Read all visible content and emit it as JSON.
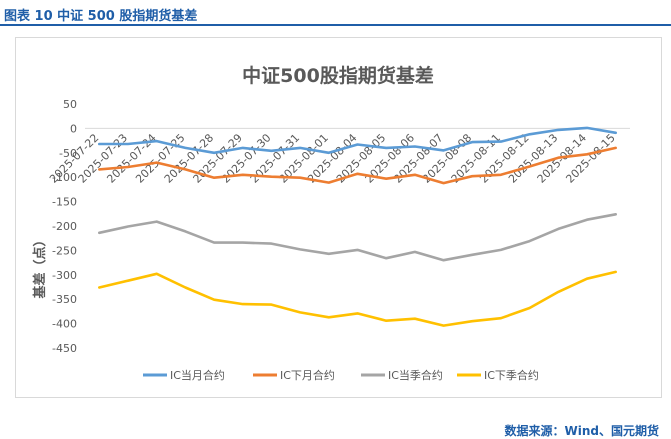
{
  "figure": {
    "caption": "图表 10  中证 500 股指期货基差",
    "source": "数据来源：Wind、国元期货"
  },
  "chart_data": {
    "type": "line",
    "title": "中证500股指期货基差",
    "xlabel": "",
    "ylabel": "基差（点）",
    "ylim": [
      -450,
      50
    ],
    "yticks": [
      50,
      0,
      -50,
      -100,
      -150,
      -200,
      -250,
      -300,
      -350,
      -400,
      -450
    ],
    "grid": false,
    "legend_position": "bottom",
    "categories": [
      "2025-07-22",
      "2025-07-23",
      "2025-07-24",
      "2025-07-25",
      "2025-07-28",
      "2025-07-29",
      "2025-07-30",
      "2025-07-31",
      "2025-08-01",
      "2025-08-04",
      "2025-08-05",
      "2025-08-06",
      "2025-08-07",
      "2025-08-08",
      "2025-08-11",
      "2025-08-12",
      "2025-08-13",
      "2025-08-14",
      "2025-08-15"
    ],
    "series": [
      {
        "name": "IC当月合约",
        "color": "#5b9bd5",
        "values": [
          -32,
          -32,
          -26,
          -40,
          -50,
          -40,
          -46,
          -40,
          -50,
          -33,
          -40,
          -37,
          -45,
          -28,
          -27,
          -12,
          -3,
          1,
          -9
        ]
      },
      {
        "name": "IC下月合约",
        "color": "#ed7d31",
        "values": [
          -84,
          -79,
          -70,
          -84,
          -101,
          -95,
          -99,
          -101,
          -111,
          -93,
          -103,
          -95,
          -112,
          -98,
          -95,
          -78,
          -60,
          -53,
          -40
        ]
      },
      {
        "name": "IC当季合约",
        "color": "#a5a5a5",
        "values": [
          -214,
          -201,
          -191,
          -211,
          -234,
          -234,
          -236,
          -248,
          -257,
          -249,
          -266,
          -253,
          -270,
          -259,
          -249,
          -231,
          -206,
          -187,
          -176
        ]
      },
      {
        "name": "IC下季合约",
        "color": "#ffc000",
        "values": [
          -326,
          -312,
          -298,
          -326,
          -351,
          -360,
          -361,
          -377,
          -387,
          -379,
          -394,
          -390,
          -404,
          -395,
          -389,
          -368,
          -335,
          -308,
          -294
        ]
      }
    ]
  }
}
